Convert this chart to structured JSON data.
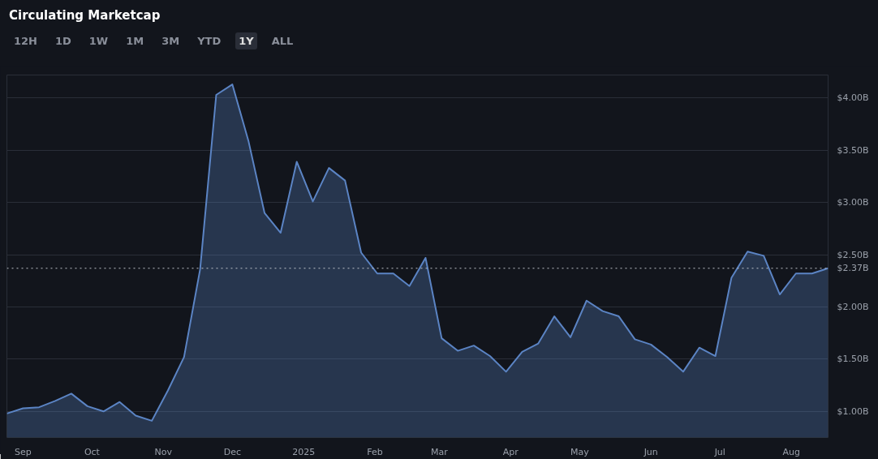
{
  "chart_data": {
    "type": "area",
    "title": "Circulating Marketcap",
    "annotations": [
      "12H",
      "1D",
      "1W",
      "1M",
      "3M",
      "YTD",
      "1Y",
      "ALL"
    ],
    "x": [
      "2024-08-25",
      "2024-09-01",
      "2024-09-08",
      "2024-09-15",
      "2024-09-22",
      "2024-09-29",
      "2024-10-06",
      "2024-10-13",
      "2024-10-20",
      "2024-10-27",
      "2024-11-03",
      "2024-11-10",
      "2024-11-17",
      "2024-11-24",
      "2024-12-01",
      "2024-12-08",
      "2024-12-15",
      "2024-12-22",
      "2024-12-29",
      "2025-01-05",
      "2025-01-12",
      "2025-01-19",
      "2025-01-26",
      "2025-02-02",
      "2025-02-09",
      "2025-02-16",
      "2025-02-23",
      "2025-03-02",
      "2025-03-09",
      "2025-03-16",
      "2025-03-23",
      "2025-03-30",
      "2025-04-06",
      "2025-04-13",
      "2025-04-20",
      "2025-04-27",
      "2025-05-04",
      "2025-05-11",
      "2025-05-18",
      "2025-05-25",
      "2025-06-01",
      "2025-06-08",
      "2025-06-15",
      "2025-06-22",
      "2025-06-29",
      "2025-07-06",
      "2025-07-13",
      "2025-07-20",
      "2025-07-27",
      "2025-08-03",
      "2025-08-10",
      "2025-08-17"
    ],
    "series": [
      {
        "color": "#5b84c4",
        "values": [
          0.98,
          1.03,
          1.04,
          1.1,
          1.17,
          1.05,
          1.0,
          1.09,
          0.96,
          0.91,
          1.2,
          1.52,
          2.36,
          4.03,
          4.13,
          3.59,
          2.9,
          2.71,
          3.39,
          3.01,
          3.33,
          3.21,
          2.52,
          2.32,
          2.32,
          2.2,
          2.47,
          1.7,
          1.58,
          1.63,
          1.53,
          1.38,
          1.57,
          1.65,
          1.91,
          1.71,
          2.06,
          1.96,
          1.91,
          1.69,
          1.64,
          1.52,
          1.38,
          1.61,
          1.53,
          2.28,
          2.53,
          2.49,
          2.12,
          2.32,
          2.32,
          2.37
        ]
      }
    ],
    "xlim": [
      "2024-08-25",
      "2025-08-17"
    ],
    "xticks": [
      {
        "value": "2024-09-01",
        "label": "Sep"
      },
      {
        "value": "2024-10-01",
        "label": "Oct"
      },
      {
        "value": "2024-11-01",
        "label": "Nov"
      },
      {
        "value": "2024-12-01",
        "label": "Dec"
      },
      {
        "value": "2025-01-01",
        "label": "2025"
      },
      {
        "value": "2025-02-01",
        "label": "Feb"
      },
      {
        "value": "2025-03-01",
        "label": "Mar"
      },
      {
        "value": "2025-04-01",
        "label": "Apr"
      },
      {
        "value": "2025-05-01",
        "label": "May"
      },
      {
        "value": "2025-06-01",
        "label": "Jun"
      },
      {
        "value": "2025-07-01",
        "label": "Jul"
      },
      {
        "value": "2025-08-01",
        "label": "Aug"
      }
    ],
    "ylim": [
      0.75,
      4.22
    ],
    "yticks": [
      {
        "value": 1.0,
        "label": "$1.00B"
      },
      {
        "value": 1.5,
        "label": "$1.50B"
      },
      {
        "value": 2.0,
        "label": "$2.00B"
      },
      {
        "value": 2.5,
        "label": "$2.50B"
      },
      {
        "value": 3.0,
        "label": "$3.00B"
      },
      {
        "value": 3.5,
        "label": "$3.50B"
      },
      {
        "value": 4.0,
        "label": "$4.00B"
      }
    ],
    "ref_lines": [
      {
        "axis": "y",
        "value": 2.37,
        "label": "$2.37B",
        "color": "#c0c4cc",
        "line_style": "dotted"
      }
    ],
    "grid": "y",
    "line_style": "solid"
  }
}
